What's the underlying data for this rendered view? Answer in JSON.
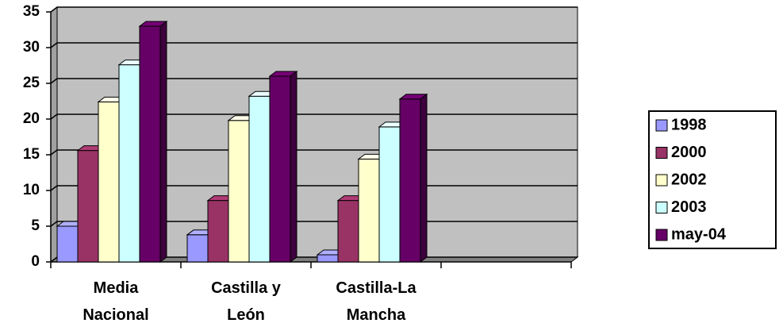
{
  "chart_data": {
    "type": "bar3d",
    "categories": [
      "Media Nacional",
      "Castilla y León",
      "Castilla-La Mancha",
      null
    ],
    "series": [
      {
        "name": "1998",
        "color": "#9999ff",
        "values": [
          5,
          3.8,
          1,
          null
        ]
      },
      {
        "name": "2000",
        "color": "#993366",
        "values": [
          15.6,
          8.6,
          8.6,
          null
        ]
      },
      {
        "name": "2002",
        "color": "#ffffcc",
        "values": [
          22.4,
          19.8,
          14.4,
          null
        ]
      },
      {
        "name": "2003",
        "color": "#ccffff",
        "values": [
          27.6,
          23.2,
          18.9,
          null
        ]
      },
      {
        "name": "may-04",
        "color": "#660066",
        "values": [
          33,
          26,
          22.8,
          null
        ]
      }
    ],
    "ylim": [
      0,
      35
    ],
    "yticks": [
      0,
      5,
      10,
      15,
      20,
      25,
      30,
      35
    ],
    "grid": true,
    "legend": "right"
  }
}
